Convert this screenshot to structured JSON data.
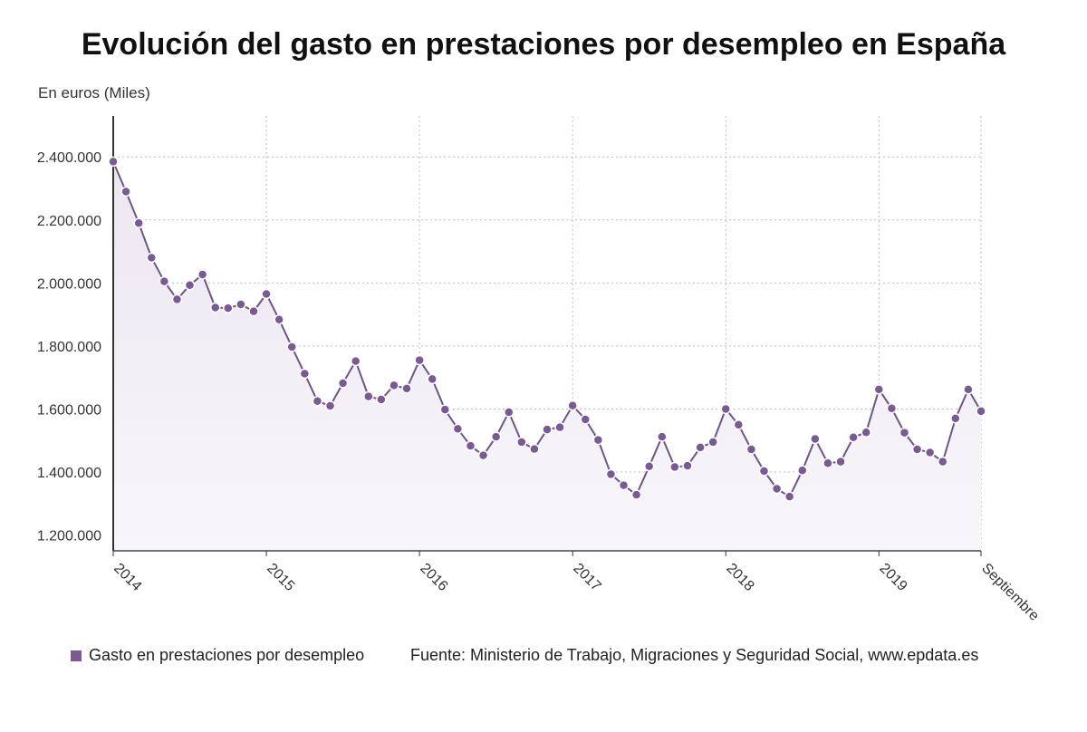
{
  "header": {
    "title": "Evolución del gasto en prestaciones por desempleo en España",
    "unit_label": "En euros (Miles)"
  },
  "legend": {
    "series_label": "Gasto en prestaciones por desempleo",
    "source": "Fuente: Ministerio de Trabajo, Migraciones y Seguridad Social, www.epdata.es"
  },
  "colors": {
    "line": "#6f5585",
    "marker": "#7a5a93",
    "area_top": "#ece6f1",
    "area_bottom": "#f8f6fa",
    "grid": "#bdbdbd"
  },
  "chart_data": {
    "type": "area",
    "title": "Evolución del gasto en prestaciones por desempleo en España",
    "ylabel": "En euros (Miles)",
    "ylim": [
      1150000,
      2530000
    ],
    "yticks": [
      1200000,
      1400000,
      1600000,
      1800000,
      2000000,
      2200000,
      2400000
    ],
    "ytick_labels": [
      "1.200.000",
      "1.400.000",
      "1.600.000",
      "1.800.000",
      "2.000.000",
      "2.200.000",
      "2.400.000"
    ],
    "xticks": [
      {
        "index": 0,
        "label": "2014"
      },
      {
        "index": 12,
        "label": "2015"
      },
      {
        "index": 24,
        "label": "2016"
      },
      {
        "index": 36,
        "label": "2017"
      },
      {
        "index": 48,
        "label": "2018"
      },
      {
        "index": 60,
        "label": "2019"
      },
      {
        "index": 68,
        "label": "Septiembre"
      }
    ],
    "grid": true,
    "legend_position": "bottom",
    "series": [
      {
        "name": "Gasto en prestaciones por desempleo",
        "values": [
          2385000,
          2290000,
          2190000,
          2080000,
          2005000,
          1948000,
          1993000,
          2027000,
          1922000,
          1920000,
          1932000,
          1910000,
          1965000,
          1884000,
          1797000,
          1712000,
          1625000,
          1610000,
          1682000,
          1752000,
          1640000,
          1630000,
          1675000,
          1665000,
          1755000,
          1695000,
          1598000,
          1537000,
          1483000,
          1453000,
          1512000,
          1590000,
          1495000,
          1473000,
          1535000,
          1542000,
          1611000,
          1567000,
          1502000,
          1393000,
          1358000,
          1328000,
          1418000,
          1512000,
          1416000,
          1420000,
          1478000,
          1495000,
          1600000,
          1550000,
          1472000,
          1403000,
          1347000,
          1322000,
          1405000,
          1505000,
          1428000,
          1433000,
          1510000,
          1526000,
          1662000,
          1602000,
          1525000,
          1472000,
          1462000,
          1433000,
          1570000,
          1662000,
          1593000
        ]
      }
    ]
  }
}
